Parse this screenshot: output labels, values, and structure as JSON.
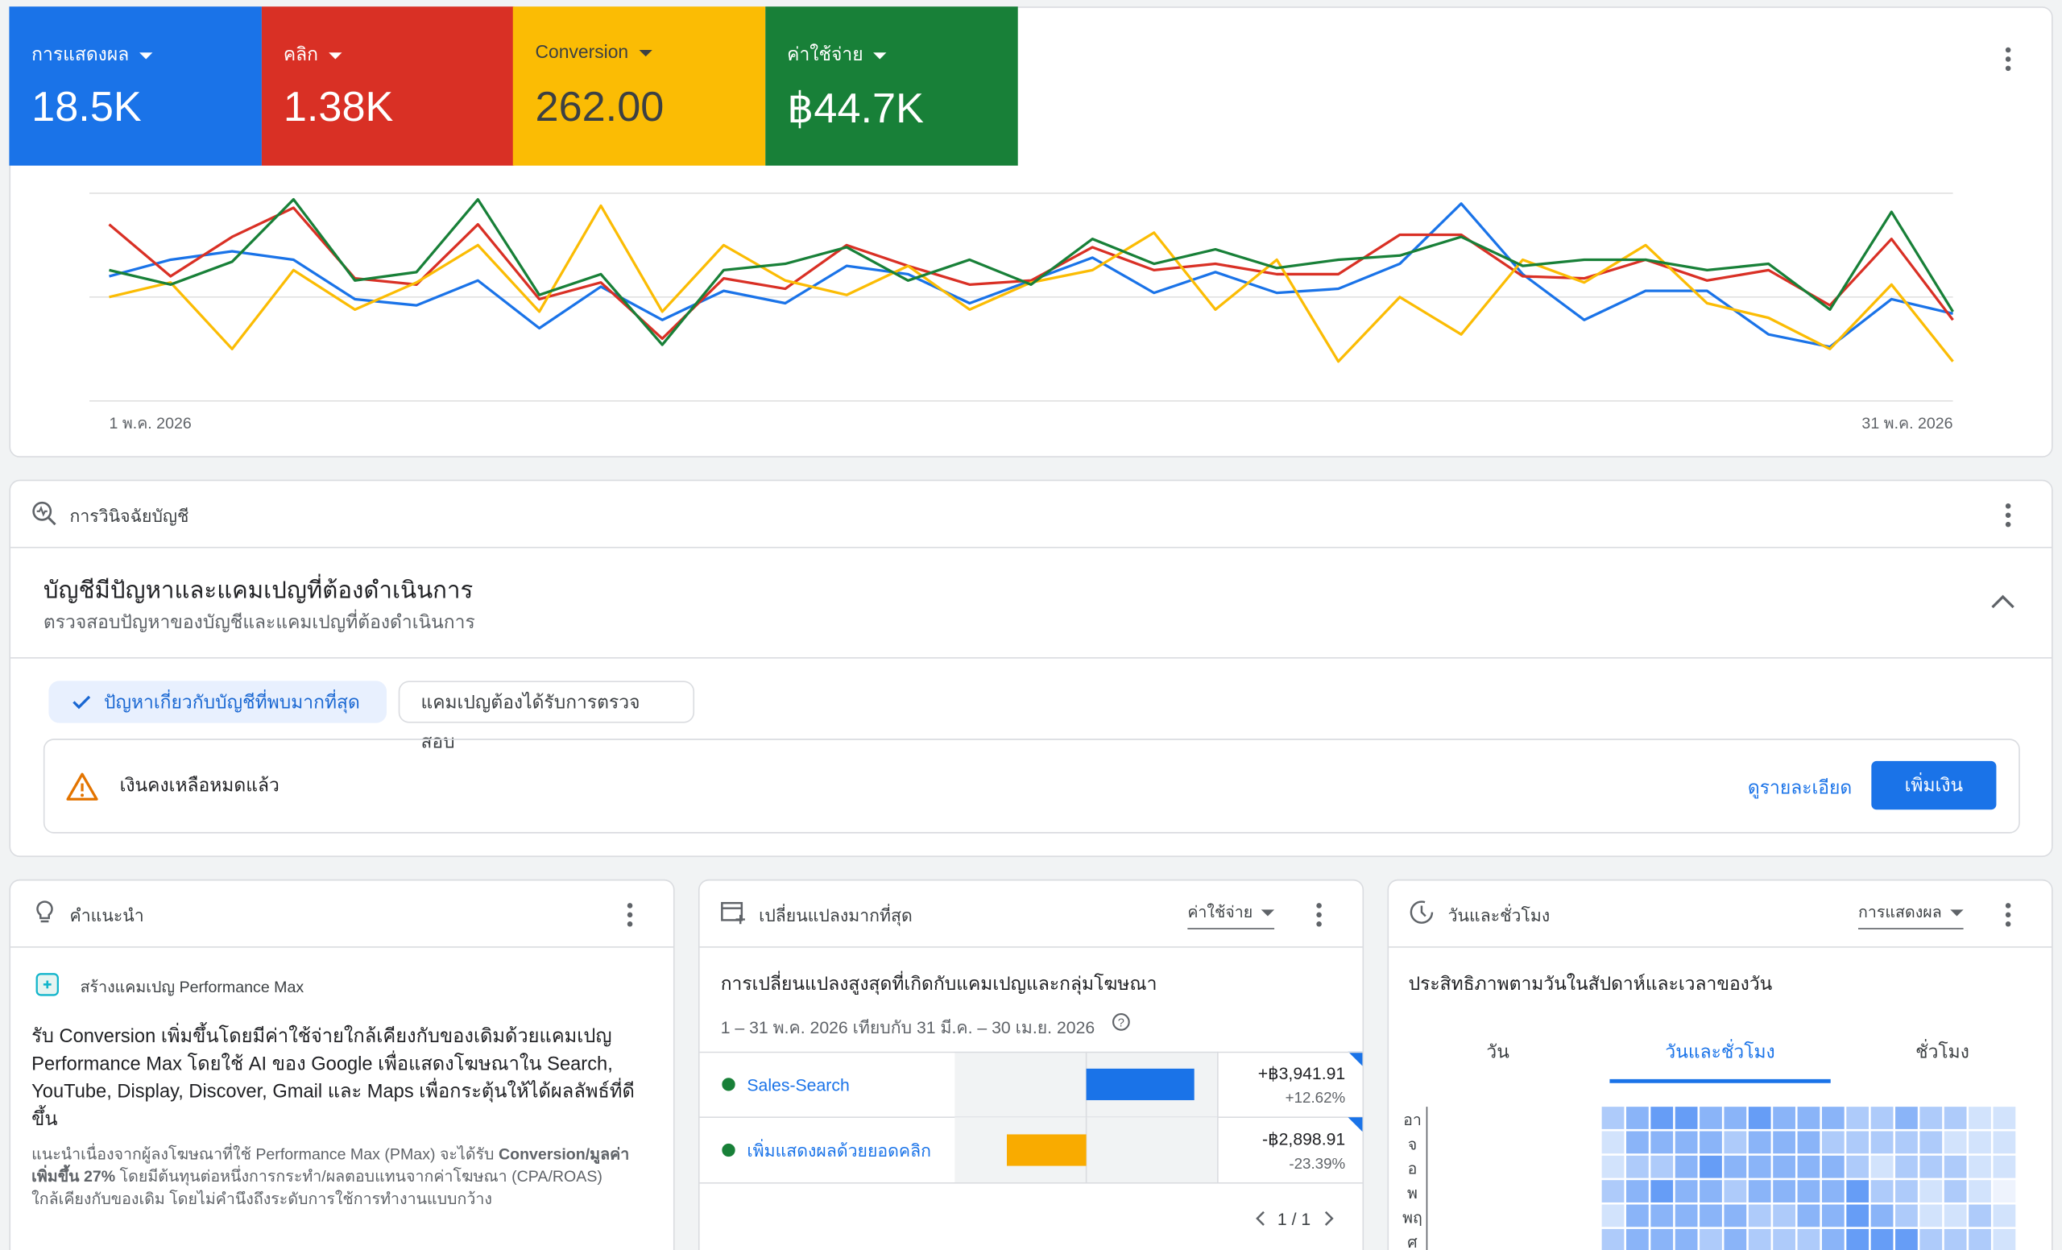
{
  "scorecards": [
    {
      "label": "การแสดงผล",
      "value": "18.5K",
      "color": "#1a73e8",
      "text_color": "#ffffff"
    },
    {
      "label": "คลิก",
      "value": "1.38K",
      "color": "#d93025",
      "text_color": "#ffffff"
    },
    {
      "label": "Conversion",
      "value": "262.00",
      "color": "#fbbc04",
      "text_color": "#3c4043"
    },
    {
      "label": "ค่าใช้จ่าย",
      "value": "฿44.7K",
      "color": "#188038",
      "text_color": "#ffffff"
    }
  ],
  "chart_data": {
    "type": "line",
    "categories": [
      "1 พ.ค. 2026",
      null,
      null,
      null,
      null,
      null,
      null,
      null,
      null,
      null,
      null,
      null,
      null,
      null,
      null,
      null,
      null,
      null,
      null,
      null,
      null,
      null,
      null,
      null,
      null,
      null,
      null,
      null,
      null,
      null,
      "31 พ.ค. 2026"
    ],
    "series": [
      {
        "color": "#1a73e8",
        "values": [
          60,
          68,
          72,
          68,
          49,
          46,
          58,
          35,
          55,
          39,
          53,
          47,
          65,
          61,
          47,
          58,
          69,
          52,
          62,
          52,
          54,
          66,
          95,
          61,
          39,
          53,
          53,
          32,
          26,
          49,
          42
        ]
      },
      {
        "color": "#d93025",
        "values": [
          85,
          60,
          79,
          93,
          59,
          56,
          85,
          49,
          57,
          30,
          59,
          54,
          75,
          65,
          56,
          58,
          74,
          63,
          66,
          61,
          61,
          80,
          80,
          60,
          59,
          68,
          58,
          63,
          46,
          78,
          39
        ]
      },
      {
        "color": "#fbbc04",
        "values": [
          50,
          57,
          25,
          63,
          44,
          57,
          75,
          43,
          94,
          43,
          75,
          58,
          51,
          65,
          44,
          57,
          63,
          81,
          44,
          68,
          19,
          50,
          32,
          68,
          57,
          75,
          47,
          40,
          25,
          56,
          19
        ]
      },
      {
        "color": "#188038",
        "values": [
          63,
          56,
          67,
          97,
          58,
          62,
          97,
          51,
          61,
          27,
          63,
          66,
          74,
          58,
          68,
          56,
          78,
          66,
          73,
          64,
          68,
          70,
          79,
          65,
          68,
          68,
          63,
          66,
          44,
          91,
          43
        ]
      }
    ],
    "ylim": [
      0,
      100
    ],
    "grid": true
  },
  "diagnostics": {
    "header": "การวินิจฉัยบัญชี",
    "title": "บัญชีมีปัญหาและแคมเปญที่ต้องดำเนินการ",
    "subtitle": "ตรวจสอบปัญหาของบัญชีและแคมเปญที่ต้องดำเนินการ",
    "chips": [
      "ปัญหาเกี่ยวกับบัญชีที่พบมากที่สุด",
      "แคมเปญต้องได้รับการตรวจสอบ"
    ],
    "alert": "เงินคงเหลือหมดแล้ว",
    "link": "ดูรายละเอียด",
    "button": "เพิ่มเงิน"
  },
  "recommendations": {
    "header": "คำแนะนำ",
    "item": "สร้างแคมเปญ Performance Max",
    "headline": "รับ Conversion เพิ่มขึ้นโดยมีค่าใช้จ่ายใกล้เคียงกับของเดิมด้วยแคมเปญ Performance Max โดยใช้ AI ของ Google เพื่อแสดงโฆษณาใน Search, YouTube, Display, Discover, Gmail และ Maps เพื่อกระตุ้นให้ได้ผลลัพธ์ที่ดีขึ้น",
    "note": [
      "แนะนำเนื่องจากผู้ลงโฆษณาที่ใช้ Performance Max (PMax) จะได้รับ ",
      "Conversion/มูลค่าเพิ่มขึ้น 27%",
      " โดยมีต้นทุนต่อหนึ่งการกระทำ/ผลตอบแทนจากค่าโฆษณา (CPA/ROAS) ใกล้เคียงกับของเดิม โดยไม่คำนึงถึงระดับการใช้การทำงานแบบกว้าง"
    ]
  },
  "top_changes": {
    "header": "เปลี่ยนแปลงมากที่สุด",
    "metric": "ค่าใช้จ่าย",
    "title": "การเปลี่ยนแปลงสูงสุดที่เกิดกับแคมเปญและกลุ่มโฆษณา",
    "date_range": "1 – 31 พ.ค. 2026 เทียบกับ 31 มี.ค. – 30 เม.ย. 2026",
    "xlim": [
      -4800,
      4800
    ],
    "rows": [
      {
        "name": "Sales-Search",
        "value": 3941.91,
        "value_label": "+฿3,941.91",
        "pct_label": "+12.62%",
        "color": "#1a73e8"
      },
      {
        "name": "เพิ่มแสดงผลด้วยยอดคลิก",
        "value": -2898.91,
        "value_label": "-฿2,898.91",
        "pct_label": "-23.39%",
        "color": "#f9ab00"
      }
    ],
    "pagination": "1 / 1"
  },
  "day_hour": {
    "header": "วันและชั่วโมง",
    "metric": "การแสดงผล",
    "title": "ประสิทธิภาพตามวันในสัปดาห์และเวลาของวัน",
    "tabs": [
      "วัน",
      "วันและชั่วโมง",
      "ชั่วโมง"
    ],
    "selected_tab": 1,
    "days": [
      "อา",
      "จ",
      "อ",
      "พ",
      "พฤ",
      "ศ"
    ],
    "colors": [
      "#eef3fd",
      "#d2e3fc",
      "#aecbfa",
      "#8ab4f8",
      "#669df6"
    ],
    "heatmap": [
      [
        2,
        3,
        4,
        4,
        3,
        3,
        4,
        3,
        3,
        3,
        2,
        2,
        3,
        2,
        2,
        1,
        1
      ],
      [
        1,
        3,
        3,
        3,
        3,
        2,
        3,
        3,
        3,
        2,
        2,
        2,
        2,
        2,
        1,
        1,
        1
      ],
      [
        1,
        2,
        2,
        3,
        4,
        3,
        3,
        3,
        3,
        3,
        2,
        1,
        2,
        2,
        2,
        1,
        1
      ],
      [
        2,
        3,
        4,
        3,
        3,
        2,
        3,
        3,
        3,
        3,
        4,
        2,
        2,
        1,
        2,
        1,
        0
      ],
      [
        1,
        3,
        3,
        3,
        3,
        3,
        2,
        2,
        3,
        3,
        4,
        3,
        2,
        1,
        1,
        2,
        1
      ],
      [
        2,
        3,
        3,
        3,
        2,
        3,
        2,
        2,
        2,
        3,
        4,
        4,
        4,
        2,
        2,
        2,
        1
      ]
    ]
  }
}
